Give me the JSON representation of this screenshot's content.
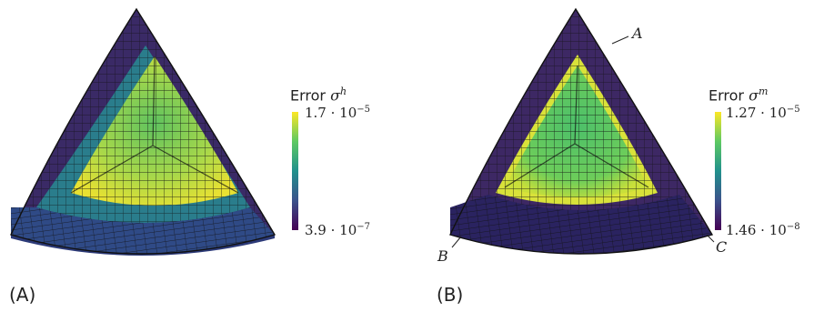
{
  "panels": [
    {
      "panel_label": "(A)",
      "colorbar": {
        "title": "Error",
        "symbol": "σ",
        "superscript": "h",
        "max_mantissa": "1.7",
        "max_exponent": "−5",
        "min_mantissa": "3.9",
        "min_exponent": "−7"
      }
    },
    {
      "panel_label": "(B)",
      "colorbar": {
        "title": "Error",
        "symbol": "σ",
        "superscript": "m",
        "max_mantissa": "1.27",
        "max_exponent": "−5",
        "min_mantissa": "1.46",
        "min_exponent": "−8"
      },
      "corner_labels": [
        "A",
        "B",
        "C"
      ]
    }
  ],
  "colors": {
    "viridis_low": "#440154",
    "viridis_mid": "#21918c",
    "viridis_high": "#fde725",
    "mesh_line": "#111111"
  }
}
